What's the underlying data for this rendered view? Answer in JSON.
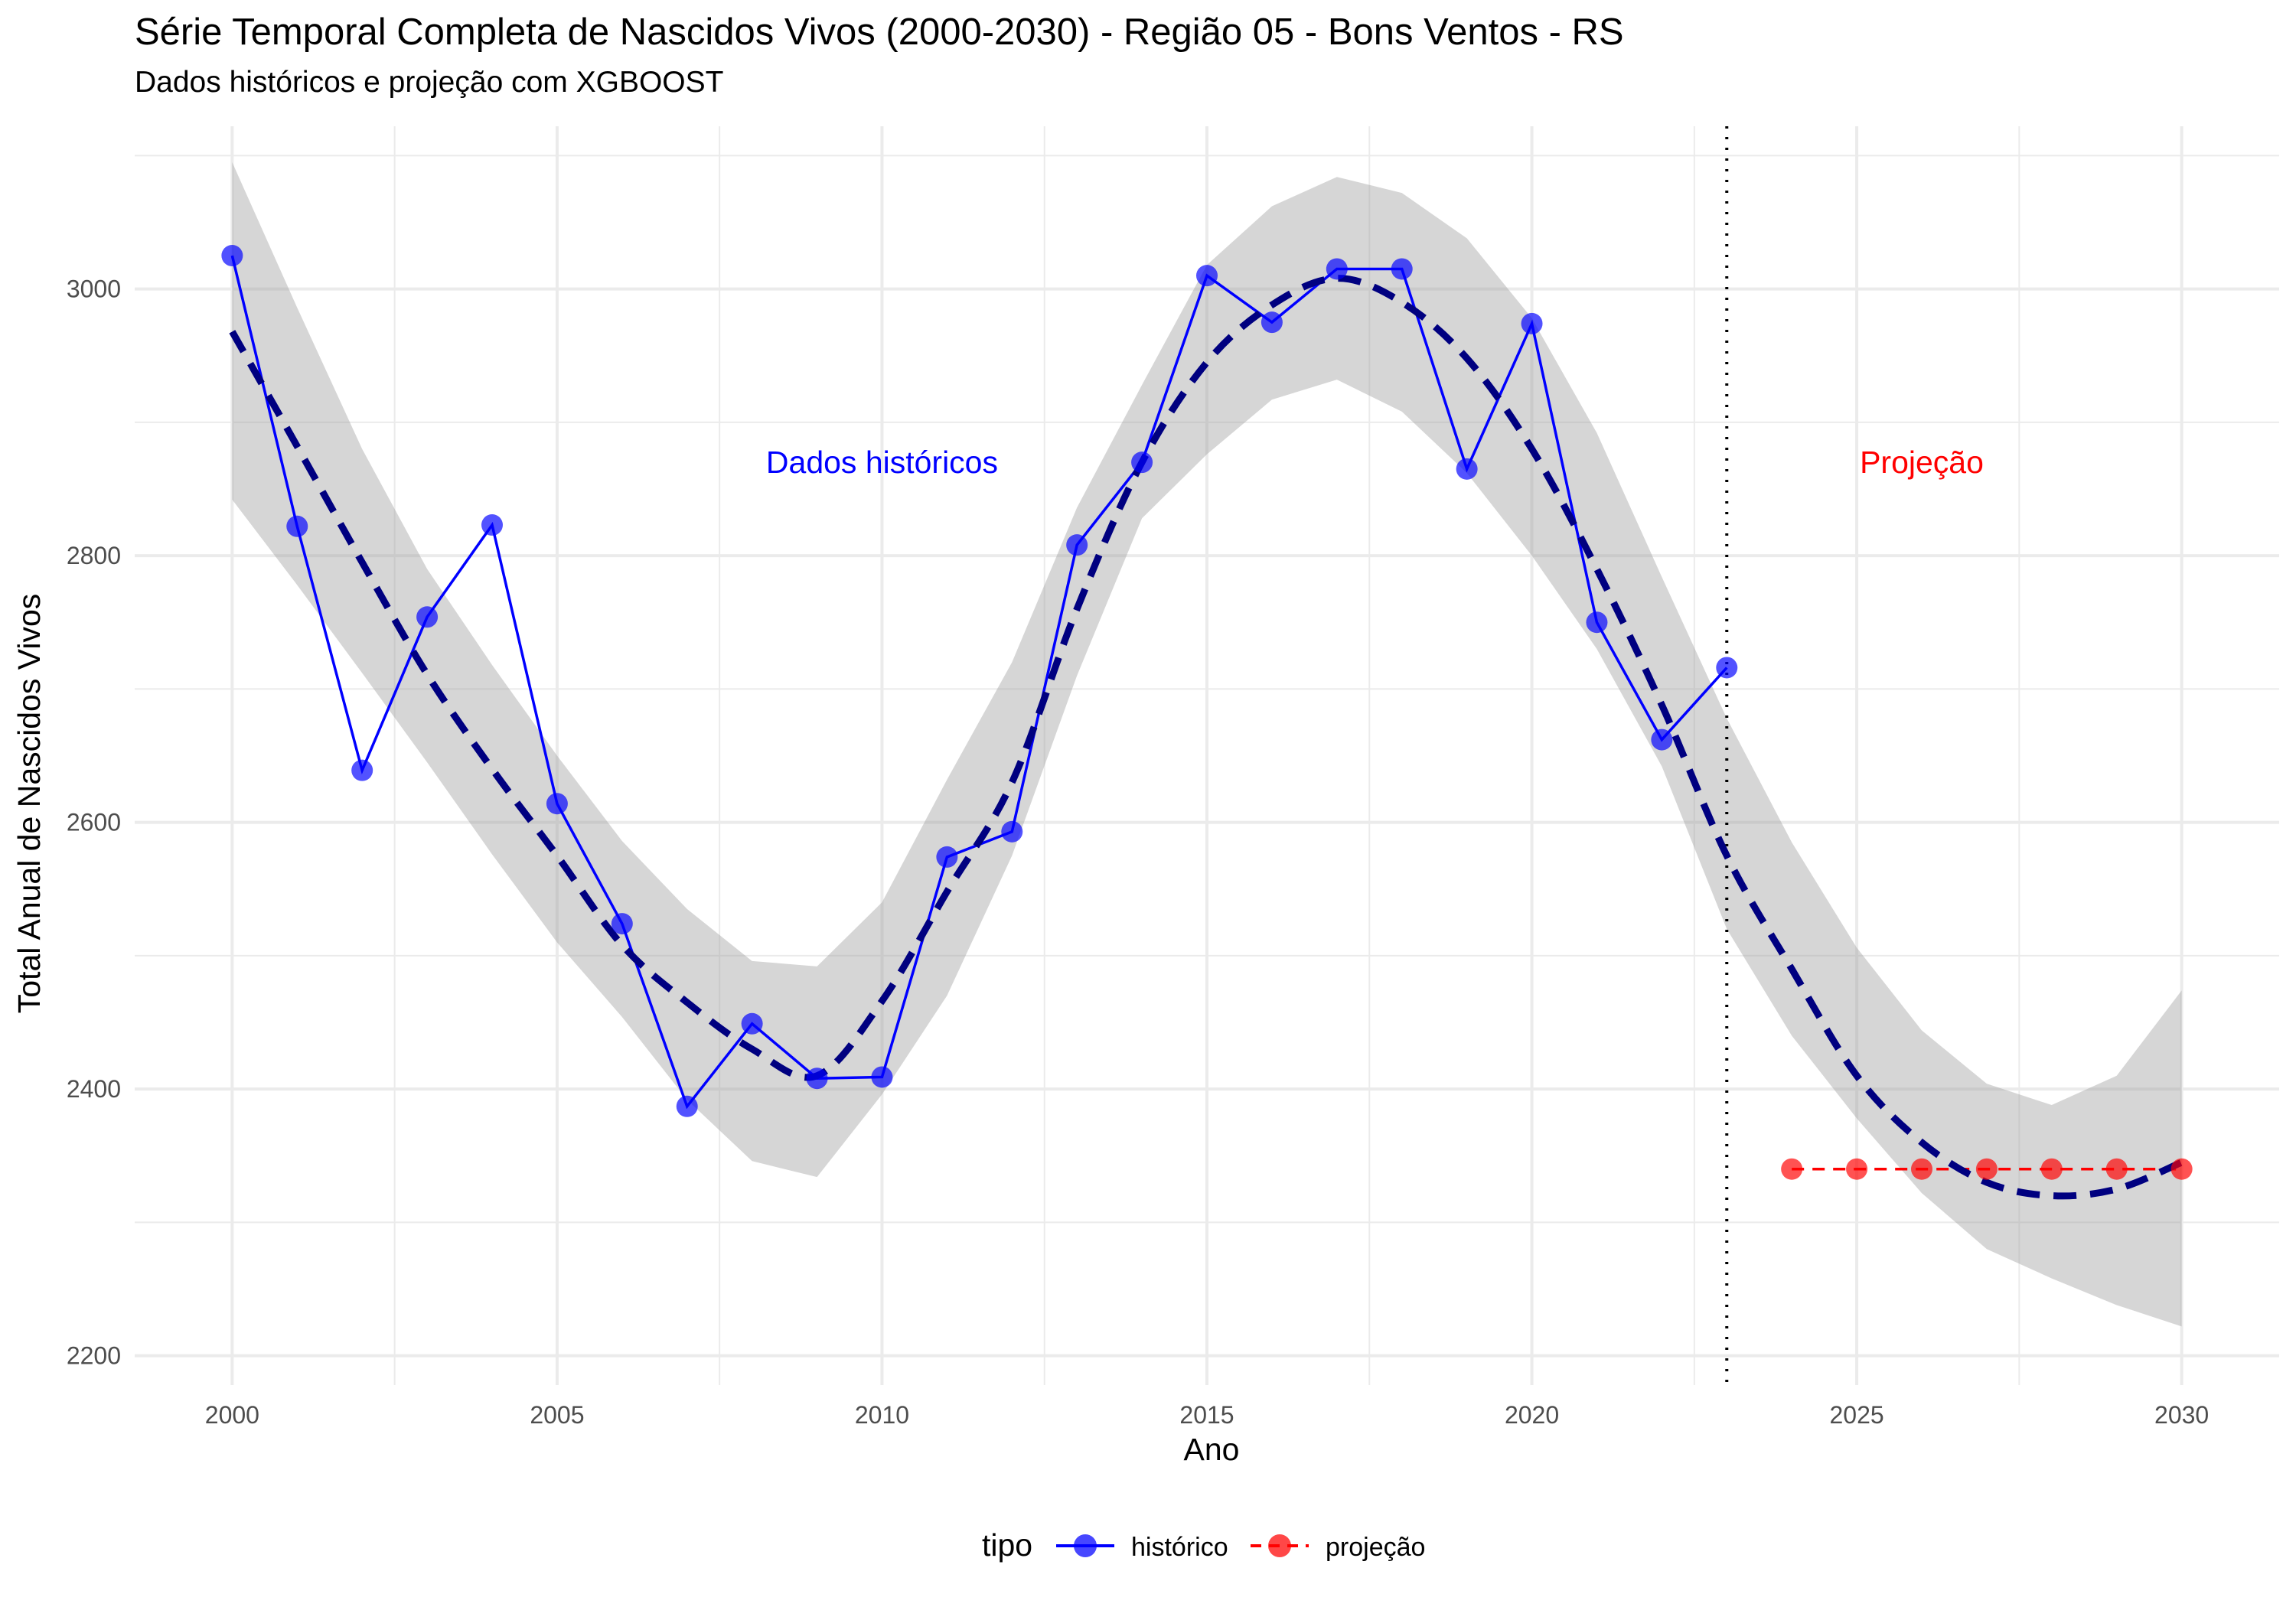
{
  "chart_data": {
    "type": "line",
    "title": "Série Temporal Completa de Nascidos Vivos (2000-2030) -  Região 05 - Bons Ventos - RS",
    "subtitle": "Dados históricos e projeção com XGBOOST",
    "xlabel": "Ano",
    "ylabel": "Total Anual de Nascidos Vivos",
    "xlim": [
      1998.5,
      2031.5
    ],
    "ylim": [
      2178,
      3122
    ],
    "x_ticks": [
      2000,
      2005,
      2010,
      2015,
      2020,
      2025,
      2030
    ],
    "y_ticks": [
      2200,
      2400,
      2600,
      2800,
      3000
    ],
    "grid": true,
    "legend": {
      "position": "bottom",
      "title": "tipo",
      "entries": [
        {
          "label": "histórico",
          "color": "#0000ff"
        },
        {
          "label": "projeção",
          "color": "#ff0000"
        }
      ]
    },
    "annotations": [
      {
        "text": "Dados históricos",
        "x": 2010,
        "y": 2870,
        "color": "#0000ff"
      },
      {
        "text": "Projeção",
        "x": 2026,
        "y": 2870,
        "color": "#ff0000"
      }
    ],
    "vline": {
      "x": 2023,
      "style": "dotted"
    },
    "series": [
      {
        "name": "histórico",
        "color": "#0000ff",
        "x": [
          2000,
          2001,
          2002,
          2003,
          2004,
          2005,
          2006,
          2007,
          2008,
          2009,
          2010,
          2011,
          2012,
          2013,
          2014,
          2015,
          2016,
          2017,
          2018,
          2019,
          2020,
          2021,
          2022,
          2023
        ],
        "values": [
          3025,
          2822,
          2639,
          2754,
          2823,
          2614,
          2524,
          2387,
          2449,
          2408,
          2409,
          2574,
          2593,
          2808,
          2870,
          3010,
          2975,
          3015,
          3015,
          2865,
          2974,
          2750,
          2662,
          2716
        ]
      },
      {
        "name": "projeção",
        "color": "#ff0000",
        "x": [
          2024,
          2025,
          2026,
          2027,
          2028,
          2029,
          2030
        ],
        "values": [
          2340,
          2340,
          2340,
          2340,
          2340,
          2340,
          2340
        ]
      }
    ],
    "trend": {
      "color": "#000080",
      "style": "dashed",
      "x": [
        2000,
        2001,
        2002,
        2003,
        2004,
        2005,
        2006,
        2007,
        2008,
        2009,
        2010,
        2011,
        2012,
        2013,
        2014,
        2015,
        2016,
        2017,
        2018,
        2019,
        2020,
        2021,
        2022,
        2023,
        2024,
        2025,
        2026,
        2027,
        2028,
        2029,
        2030
      ],
      "values": [
        2968,
        2882,
        2795,
        2711,
        2640,
        2575,
        2508,
        2465,
        2430,
        2410,
        2466,
        2548,
        2630,
        2760,
        2870,
        2945,
        2988,
        3008,
        2990,
        2948,
        2880,
        2790,
        2688,
        2575,
        2490,
        2410,
        2360,
        2330,
        2320,
        2325,
        2345
      ],
      "ci_lower": [
        2842,
        2778,
        2712,
        2645,
        2576,
        2510,
        2454,
        2392,
        2346,
        2334,
        2396,
        2470,
        2575,
        2710,
        2828,
        2876,
        2917,
        2932,
        2908,
        2862,
        2800,
        2730,
        2642,
        2520,
        2440,
        2378,
        2322,
        2280,
        2258,
        2238,
        2222
      ],
      "ci_upper": [
        3095,
        2986,
        2880,
        2790,
        2718,
        2650,
        2586,
        2535,
        2496,
        2492,
        2540,
        2632,
        2720,
        2836,
        2928,
        3018,
        3062,
        3084,
        3072,
        3038,
        2978,
        2892,
        2784,
        2678,
        2585,
        2506,
        2444,
        2404,
        2388,
        2410,
        2474
      ]
    }
  }
}
